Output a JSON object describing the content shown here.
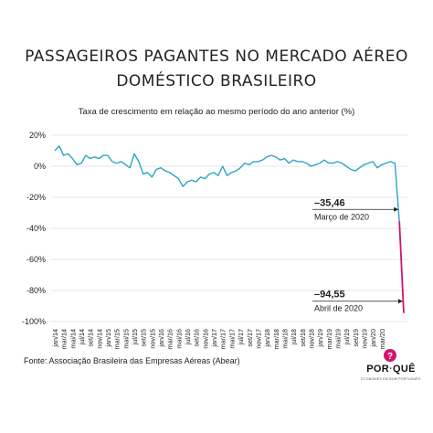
{
  "header": {
    "title_line1": "PASSAGEIROS PAGANTES NO MERCADO AÉREO",
    "title_line2": "DOMÉSTICO BRASILEIRO",
    "subtitle": "Taxa de crescimento em relação ao mesmo período do ano anterior (%)"
  },
  "footer": {
    "source": "Fonte: Associação Brasileira das Empresas Aéreas (Abear)",
    "logo_word_a": "POR",
    "logo_word_b": "QUÊ",
    "logo_tag": "ECONOMÊS EM BOM PORTUGUÊS"
  },
  "colors": {
    "line": "#2ea3c7",
    "highlight": "#d0136f",
    "grid": "#dddddd",
    "text": "#222222"
  },
  "chart_data": {
    "type": "line",
    "title": "",
    "xlabel": "",
    "ylabel": "",
    "ylim": [
      -100,
      20
    ],
    "yticks": [
      20,
      0,
      -20,
      -40,
      -60,
      -80,
      -100
    ],
    "ytick_labels": [
      "20%",
      "0%",
      "-20%",
      "-40%",
      "-60%",
      "-80%",
      "-100%"
    ],
    "xtick_labels": [
      "jan/14",
      "mar/14",
      "mai/14",
      "jul/14",
      "set/14",
      "nov/14",
      "jan/15",
      "mar/15",
      "mai/15",
      "jul/15",
      "set/15",
      "nov/15",
      "jan/16",
      "mar/16",
      "mai/16",
      "jul/16",
      "set/16",
      "nov/16",
      "jan/17",
      "mar/17",
      "mai/17",
      "jul/17",
      "set/17",
      "nov/17",
      "jan/18",
      "mar/18",
      "mai/18",
      "jul/18",
      "set/18",
      "nov/18",
      "jan/19",
      "mar/19",
      "mai/19",
      "jul/19",
      "set/19",
      "nov/19",
      "jan/20",
      "mar/20"
    ],
    "grid": true,
    "series": [
      {
        "values": [
          10,
          13,
          7,
          8,
          5,
          1,
          2,
          7,
          5,
          6,
          5,
          7,
          7,
          3,
          2,
          3,
          1,
          -1,
          8,
          3,
          -5,
          -4,
          -7,
          -2,
          -1,
          -3,
          -4,
          -6,
          -8,
          -13,
          -10,
          -9,
          -10,
          -7,
          -8,
          -5,
          -4,
          -6,
          0,
          -6,
          -4,
          -3,
          -1,
          2,
          1,
          3,
          3,
          4,
          6,
          7,
          6,
          4,
          5,
          2,
          4,
          3,
          3,
          2,
          0,
          1,
          2,
          4,
          2,
          2,
          3,
          2,
          0,
          -2,
          -3,
          -1,
          1,
          2,
          3,
          -1,
          1,
          2,
          3,
          2,
          -35.46,
          -94.55
        ]
      }
    ],
    "annotations": [
      {
        "value": "–35,46",
        "label": "Março de 2020"
      },
      {
        "value": "–94,55",
        "label": "Abril de 2020"
      }
    ]
  }
}
